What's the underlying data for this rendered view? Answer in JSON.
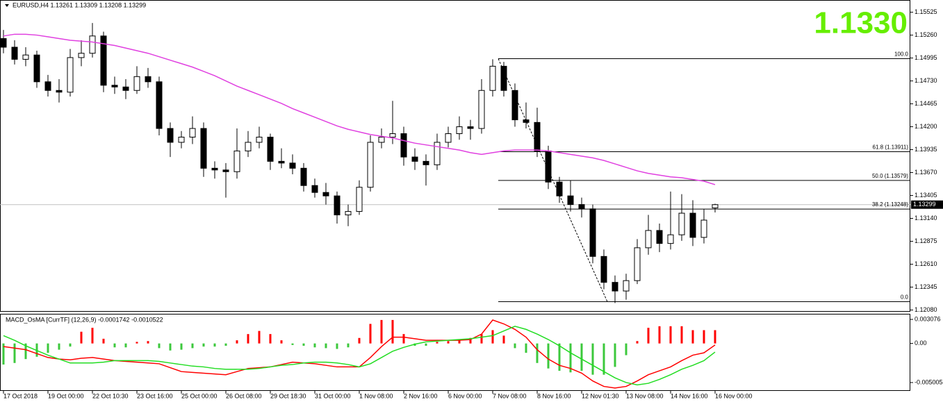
{
  "chart_data": [
    {
      "type": "candlestick",
      "title": "EURUSD,H4  1.13261 1.13309 1.13208 1.13299",
      "price_label": "1.1330",
      "up_color": "#ffffff",
      "down_color": "#000000",
      "grid": false,
      "ylim": [
        1.1206,
        1.1565
      ],
      "yticks": [
        1.15525,
        {
          "value": 1.1526,
          "label": "1.15260"
        },
        1.14995,
        {
          "value": 1.1473,
          "label": "1.14730"
        },
        1.14465,
        {
          "value": 1.142,
          "label": "1.14200"
        },
        1.13935,
        {
          "value": 1.1367,
          "label": "1.13670"
        },
        1.13405,
        {
          "value": 1.1314,
          "label": "1.13140"
        },
        1.12875,
        {
          "value": 1.1261,
          "label": "1.12610"
        },
        1.12345,
        {
          "value": 1.1208,
          "label": "1.12080"
        }
      ],
      "bid": 1.13299,
      "categories": [
        "17 Oct 2018",
        null,
        null,
        null,
        "19 Oct 00:00",
        null,
        null,
        null,
        "22 Oct 10:30",
        null,
        null,
        null,
        "23 Oct 16:00",
        null,
        null,
        null,
        "25 Oct 00:00",
        null,
        null,
        null,
        "26 Oct 08:00",
        null,
        null,
        null,
        "29 Oct 18:30",
        null,
        null,
        null,
        "31 Oct 00:00",
        null,
        null,
        null,
        "1 Nov 08:00",
        null,
        null,
        null,
        "2 Nov 16:00",
        null,
        null,
        null,
        "6 Nov 00:00",
        null,
        null,
        null,
        "7 Nov 08:00",
        null,
        null,
        null,
        "8 Nov 16:00",
        null,
        null,
        null,
        "12 Nov 01:30",
        null,
        null,
        null,
        "13 Nov 08:00",
        null,
        null,
        null,
        "14 Nov 16:00",
        null,
        null,
        null,
        "16 Nov 00:00"
      ],
      "candles": [
        [
          1.1522,
          1.1532,
          1.1505,
          1.1512
        ],
        [
          1.1512,
          1.152,
          1.1492,
          1.1498
        ],
        [
          1.1498,
          1.1512,
          1.149,
          1.1503
        ],
        [
          1.1503,
          1.1508,
          1.1465,
          1.1472
        ],
        [
          1.1472,
          1.148,
          1.1455,
          1.1462
        ],
        [
          1.1462,
          1.1475,
          1.1448,
          1.146
        ],
        [
          1.146,
          1.151,
          1.1455,
          1.15
        ],
        [
          1.15,
          1.152,
          1.149,
          1.1505
        ],
        [
          1.1505,
          1.154,
          1.15,
          1.1525
        ],
        [
          1.1525,
          1.153,
          1.146,
          1.1468
        ],
        [
          1.1468,
          1.1478,
          1.1458,
          1.1466
        ],
        [
          1.1466,
          1.1475,
          1.1452,
          1.1462
        ],
        [
          1.1462,
          1.149,
          1.1458,
          1.1478
        ],
        [
          1.1478,
          1.1488,
          1.1465,
          1.1472
        ],
        [
          1.1472,
          1.1478,
          1.141,
          1.1418
        ],
        [
          1.1418,
          1.1425,
          1.1385,
          1.1402
        ],
        [
          1.1402,
          1.1415,
          1.1395,
          1.1408
        ],
        [
          1.1408,
          1.1432,
          1.14,
          1.1418
        ],
        [
          1.1418,
          1.1425,
          1.1362,
          1.1372
        ],
        [
          1.1372,
          1.138,
          1.136,
          1.137
        ],
        [
          1.137,
          1.1378,
          1.1338,
          1.1368
        ],
        [
          1.1368,
          1.1418,
          1.136,
          1.1392
        ],
        [
          1.1392,
          1.1415,
          1.1385,
          1.1402
        ],
        [
          1.1402,
          1.142,
          1.1395,
          1.1408
        ],
        [
          1.1408,
          1.1412,
          1.137,
          1.138
        ],
        [
          1.138,
          1.1395,
          1.1372,
          1.1378
        ],
        [
          1.1378,
          1.1388,
          1.1365,
          1.1372
        ],
        [
          1.1372,
          1.1378,
          1.1345,
          1.1352
        ],
        [
          1.1352,
          1.136,
          1.1338,
          1.1344
        ],
        [
          1.1344,
          1.1355,
          1.133,
          1.134
        ],
        [
          1.134,
          1.1345,
          1.1308,
          1.1318
        ],
        [
          1.1318,
          1.133,
          1.1305,
          1.1322
        ],
        [
          1.1322,
          1.1358,
          1.1318,
          1.135
        ],
        [
          1.135,
          1.141,
          1.1345,
          1.1402
        ],
        [
          1.1402,
          1.1418,
          1.1395,
          1.1408
        ],
        [
          1.1408,
          1.145,
          1.14,
          1.1412
        ],
        [
          1.1412,
          1.142,
          1.1375,
          1.1385
        ],
        [
          1.1385,
          1.1395,
          1.137,
          1.138
        ],
        [
          1.138,
          1.1388,
          1.1352,
          1.1376
        ],
        [
          1.1376,
          1.1412,
          1.137,
          1.1402
        ],
        [
          1.1402,
          1.142,
          1.1396,
          1.1412
        ],
        [
          1.1412,
          1.1432,
          1.1405,
          1.142
        ],
        [
          1.142,
          1.1428,
          1.1405,
          1.1418
        ],
        [
          1.1418,
          1.1475,
          1.1412,
          1.1462
        ],
        [
          1.1462,
          1.1498,
          1.1455,
          1.149
        ],
        [
          1.149,
          1.1495,
          1.1455,
          1.1462
        ],
        [
          1.1462,
          1.147,
          1.142,
          1.1428
        ],
        [
          1.1428,
          1.1448,
          1.1418,
          1.1425
        ],
        [
          1.1425,
          1.1442,
          1.1385,
          1.1392
        ],
        [
          1.1392,
          1.1398,
          1.1348,
          1.1356
        ],
        [
          1.1356,
          1.1362,
          1.1332,
          1.134
        ],
        [
          1.134,
          1.1358,
          1.1322,
          1.133
        ],
        [
          1.133,
          1.1338,
          1.1315,
          1.1325
        ],
        [
          1.1325,
          1.133,
          1.1262,
          1.127
        ],
        [
          1.127,
          1.1278,
          1.1232,
          1.124
        ],
        [
          1.124,
          1.1248,
          1.1216,
          1.123
        ],
        [
          1.123,
          1.125,
          1.122,
          1.1242
        ],
        [
          1.1242,
          1.129,
          1.1238,
          1.128
        ],
        [
          1.128,
          1.1318,
          1.1272,
          1.13
        ],
        [
          1.13,
          1.1308,
          1.1275,
          1.1285
        ],
        [
          1.1285,
          1.1345,
          1.1278,
          1.1295
        ],
        [
          1.1295,
          1.1342,
          1.1288,
          1.132
        ],
        [
          1.132,
          1.1335,
          1.1282,
          1.1292
        ],
        [
          1.1292,
          1.1325,
          1.1285,
          1.1312
        ],
        [
          1.13261,
          1.13309,
          1.13208,
          1.13299
        ]
      ],
      "ma": {
        "color": "#e040e0",
        "values": [
          1.1525,
          1.1527,
          1.1527,
          1.1526,
          1.1524,
          1.1522,
          1.152,
          1.1519,
          1.1518,
          1.1516,
          1.1514,
          1.1511,
          1.1508,
          1.1505,
          1.1501,
          1.1497,
          1.1493,
          1.1489,
          1.1484,
          1.1479,
          1.1473,
          1.1467,
          1.1462,
          1.1457,
          1.1452,
          1.1447,
          1.1441,
          1.1436,
          1.1431,
          1.1426,
          1.1421,
          1.1417,
          1.1414,
          1.1411,
          1.1409,
          1.1407,
          1.1404,
          1.1401,
          1.1399,
          1.1397,
          1.1395,
          1.1393,
          1.139,
          1.1388,
          1.139,
          1.1392,
          1.1393,
          1.1393,
          1.1393,
          1.1392,
          1.139,
          1.1388,
          1.1386,
          1.1384,
          1.1381,
          1.1377,
          1.1373,
          1.1369,
          1.1366,
          1.1364,
          1.1362,
          1.1361,
          1.1359,
          1.1357,
          1.1353
        ]
      },
      "fibo": {
        "color": "#000000",
        "levels": [
          {
            "value": 1.14987,
            "label": "100.0"
          },
          {
            "value": 1.13911,
            "label": "61.8 (1.13911)"
          },
          {
            "value": 1.13579,
            "label": "50.0 (1.13579)"
          },
          {
            "value": 1.13248,
            "label": "38.2 (1.13248)"
          },
          {
            "value": 1.12176,
            "label": "0.0"
          }
        ]
      }
    },
    {
      "type": "macd",
      "title": "MACD_OsMA [CurrTF] (12,26,9) -0.0001742 -0.0010522",
      "ylim": [
        -0.00607,
        0.0037
      ],
      "yticks": [
        0.003076,
        {
          "value": 0,
          "label": "0.00"
        },
        -0.005005
      ],
      "histogram": {
        "up_color": "#ff0000",
        "down_color": "#3cc83c",
        "values": [
          -0.0027,
          -0.0025,
          -0.002,
          -0.0017,
          -0.0012,
          -0.0008,
          -0.0004,
          0.0015,
          0.002,
          0.0006,
          -0.0005,
          -0.0005,
          0.0002,
          0.0003,
          -0.0006,
          -0.0009,
          -0.0008,
          -0.0006,
          -0.0004,
          -0.0004,
          -0.0003,
          0.0004,
          0.0012,
          0.0016,
          0.0012,
          0.0004,
          -0.0002,
          -0.0003,
          -0.0005,
          -0.0006,
          -0.0007,
          -0.0005,
          0.0007,
          0.0025,
          0.003,
          0.003,
          0.0012,
          -0.0003,
          -0.0003,
          0.0002,
          0.0003,
          0.0005,
          0.0007,
          0.0012,
          0.0017,
          0.001,
          -0.0006,
          -0.0012,
          -0.0025,
          -0.0032,
          -0.0035,
          -0.0037,
          -0.0035,
          -0.004,
          -0.004,
          -0.003,
          -0.0015,
          0.0003,
          0.002,
          0.0022,
          0.0022,
          0.0022,
          0.0017,
          0.0017,
          0.0017
        ]
      },
      "lines": [
        {
          "color": "#ff0000",
          "values": [
            -0.0004,
            -0.0006,
            -0.0008,
            -0.0013,
            -0.0018,
            -0.002,
            -0.0021,
            -0.0019,
            -0.0018,
            -0.002,
            -0.0022,
            -0.0023,
            -0.0024,
            -0.0025,
            -0.0026,
            -0.0031,
            -0.0036,
            -0.0037,
            -0.0038,
            -0.0039,
            -0.004,
            -0.0036,
            -0.0032,
            -0.0031,
            -0.003,
            -0.0027,
            -0.0024,
            -0.0025,
            -0.0026,
            -0.0028,
            -0.003,
            -0.003,
            -0.003,
            -0.0018,
            -0.0004,
            0.0008,
            0.0008,
            0.0006,
            0.0004,
            0.0004,
            0.0004,
            0.0004,
            0.0005,
            0.0012,
            0.003,
            0.0025,
            0.0018,
            0.0008,
            -0.0008,
            -0.002,
            -0.0028,
            -0.0032,
            -0.0038,
            -0.0048,
            -0.0055,
            -0.0057,
            -0.0055,
            -0.0048,
            -0.004,
            -0.0035,
            -0.003,
            -0.0022,
            -0.0015,
            -0.0012,
            -0.0002
          ]
        },
        {
          "color": "#22dd22",
          "values": [
            0.001,
            0.0004,
            -0.0003,
            -0.0009,
            -0.0015,
            -0.002,
            -0.0025,
            -0.0025,
            -0.0025,
            -0.0024,
            -0.0022,
            -0.0022,
            -0.0022,
            -0.0022,
            -0.0023,
            -0.0025,
            -0.0027,
            -0.0029,
            -0.003,
            -0.0032,
            -0.0033,
            -0.0033,
            -0.0033,
            -0.0032,
            -0.003,
            -0.0028,
            -0.0027,
            -0.0025,
            -0.0024,
            -0.0024,
            -0.0025,
            -0.0027,
            -0.003,
            -0.0026,
            -0.0018,
            -0.001,
            -0.0005,
            -0.0001,
            0.0002,
            0.0003,
            0.0004,
            0.0005,
            0.0006,
            0.0008,
            0.001,
            0.0016,
            0.0022,
            0.0018,
            0.0012,
            0.0005,
            -0.0003,
            -0.0012,
            -0.002,
            -0.0028,
            -0.0036,
            -0.0044,
            -0.005,
            -0.0053,
            -0.0051,
            -0.0046,
            -0.004,
            -0.0033,
            -0.0028,
            -0.0022,
            -0.0011
          ]
        }
      ]
    }
  ]
}
